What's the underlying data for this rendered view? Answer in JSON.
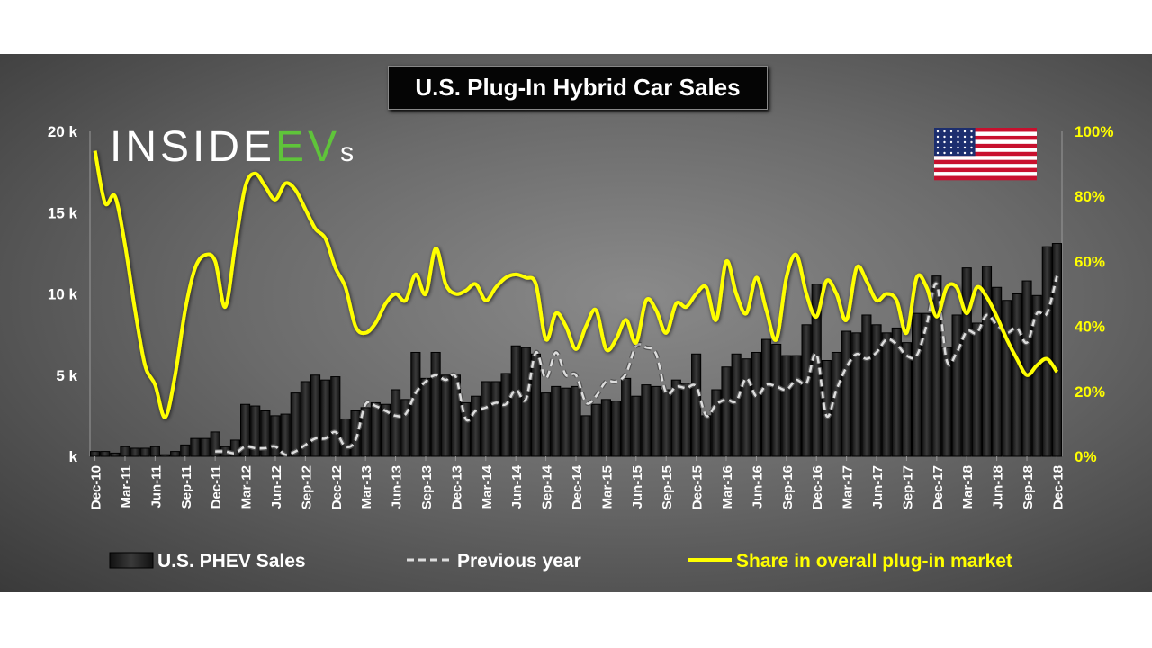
{
  "chart_data": {
    "type": "bar",
    "title": "U.S. Plug-In Hybrid Car Sales",
    "logo_text": "INSIDEEVs",
    "ylim": [
      0,
      20000
    ],
    "y2lim": [
      0,
      100
    ],
    "y_ticks": [
      "20 k",
      "15 k",
      "10 k",
      "5 k",
      "k"
    ],
    "y2_ticks": [
      "100%",
      "80%",
      "60%",
      "40%",
      "20%",
      "0%"
    ],
    "x_tick_labels": [
      "Dec-10",
      "Mar-11",
      "Jun-11",
      "Sep-11",
      "Dec-11",
      "Mar-12",
      "Jun-12",
      "Sep-12",
      "Dec-12",
      "Mar-13",
      "Jun-13",
      "Sep-13",
      "Dec-13",
      "Mar-14",
      "Jun-14",
      "Sep-14",
      "Dec-14",
      "Mar-15",
      "Jun-15",
      "Sep-15",
      "Dec-15",
      "Mar-16",
      "Jun-16",
      "Sep-16",
      "Dec-16",
      "Mar-17",
      "Jun-17",
      "Sep-17",
      "Dec-17",
      "Mar-18",
      "Jun-18",
      "Sep-18",
      "Dec-18"
    ],
    "legend_position": "bottom",
    "series": [
      {
        "name": "U.S. PHEV Sales",
        "type": "bar",
        "unit": "thousand units",
        "values": [
          0.3,
          0.3,
          0.2,
          0.6,
          0.5,
          0.5,
          0.6,
          0.1,
          0.3,
          0.7,
          1.1,
          1.1,
          1.5,
          0.6,
          1.0,
          3.2,
          3.1,
          2.8,
          2.5,
          2.6,
          3.9,
          4.6,
          5.0,
          4.7,
          4.9,
          2.3,
          2.8,
          3.0,
          3.3,
          3.2,
          4.1,
          3.5,
          6.4,
          4.8,
          6.4,
          5.0,
          5.0,
          3.3,
          3.7,
          4.6,
          4.6,
          5.1,
          6.8,
          6.7,
          6.3,
          3.9,
          4.3,
          4.2,
          4.3,
          2.5,
          3.2,
          3.5,
          3.4,
          4.8,
          3.7,
          4.4,
          4.3,
          4.1,
          4.7,
          4.5,
          6.3,
          2.5,
          4.1,
          5.5,
          6.3,
          6.0,
          6.4,
          7.2,
          6.9,
          6.2,
          6.2,
          8.1,
          10.6,
          5.9,
          6.4,
          7.7,
          7.6,
          8.7,
          8.1,
          7.6,
          7.9,
          7.0,
          8.8,
          8.8,
          11.1,
          6.7,
          8.7,
          11.6,
          8.2,
          11.7,
          10.4,
          9.6,
          10.0,
          10.8,
          9.9,
          12.9,
          13.1
        ]
      },
      {
        "name": "Previous year",
        "type": "line-dashed",
        "unit": "thousand units",
        "offset_months": 12
      },
      {
        "name": "Share in overall plug-in market",
        "type": "line",
        "unit": "percent",
        "values": [
          94,
          78,
          80,
          65,
          45,
          28,
          22,
          12,
          25,
          45,
          58,
          62,
          60,
          46,
          65,
          83,
          87,
          83,
          79,
          84,
          82,
          76,
          70,
          67,
          58,
          52,
          40,
          38,
          41,
          47,
          50,
          48,
          56,
          50,
          64,
          53,
          50,
          51,
          53,
          48,
          52,
          55,
          56,
          55,
          53,
          36,
          44,
          40,
          33,
          40,
          45,
          33,
          36,
          42,
          35,
          48,
          45,
          38,
          47,
          46,
          50,
          52,
          42,
          60,
          50,
          44,
          55,
          45,
          36,
          55,
          62,
          50,
          43,
          54,
          50,
          42,
          58,
          54,
          48,
          50,
          48,
          38,
          55,
          52,
          43,
          52,
          52,
          44,
          52,
          49,
          43,
          36,
          30,
          25,
          28,
          30,
          26
        ]
      }
    ]
  },
  "colors": {
    "bars": "#1e1e1e",
    "share": "#ffff00",
    "previous": "#d0d0d0"
  }
}
